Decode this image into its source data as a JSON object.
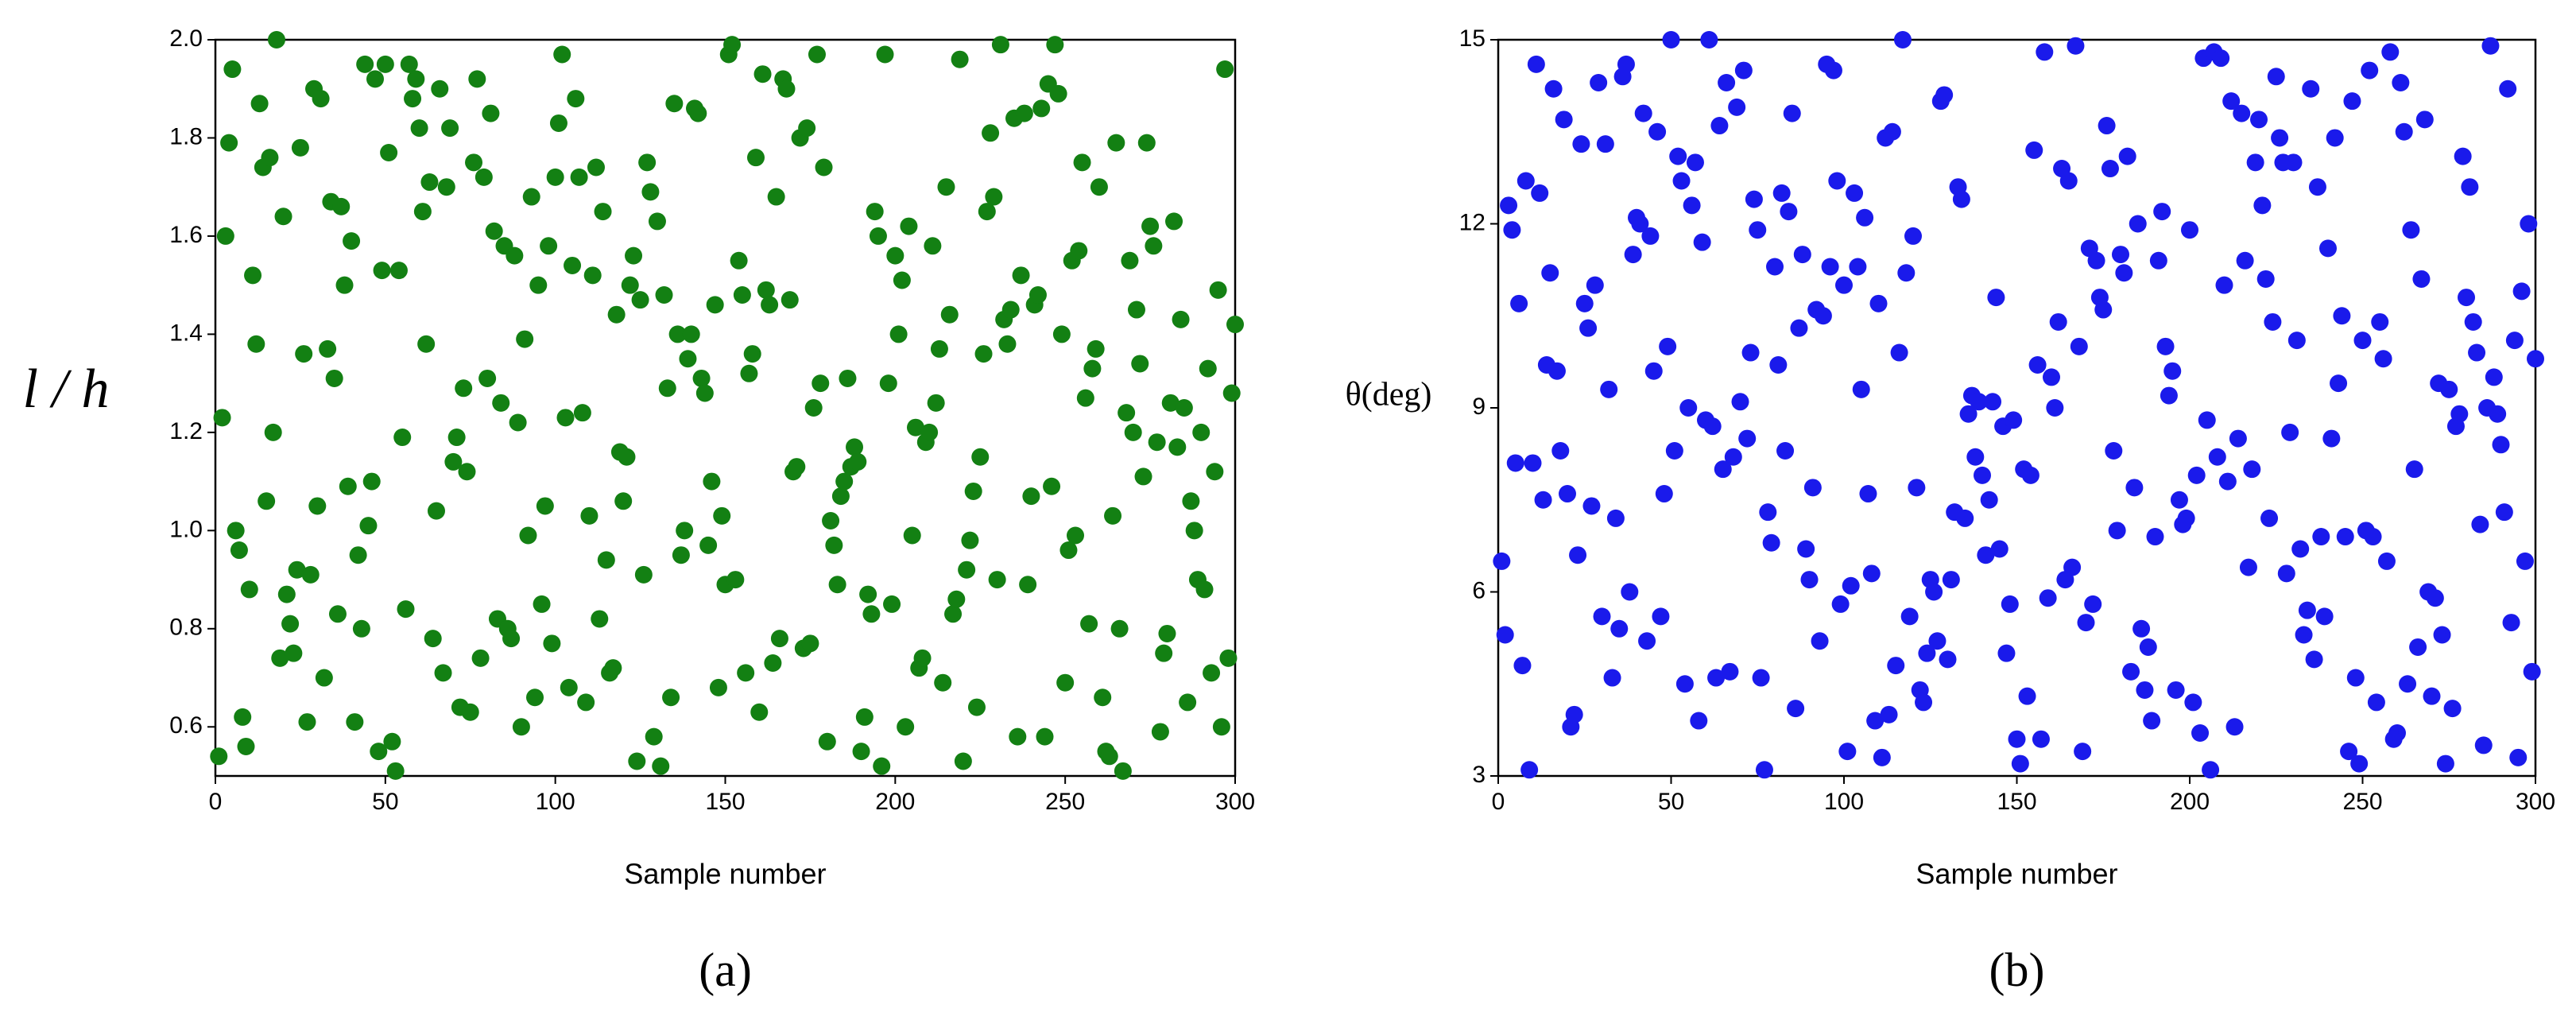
{
  "chart_data": [
    {
      "type": "scatter",
      "panel_label": "(a)",
      "xlabel": "Sample number",
      "ylabel": "l / h",
      "color": "#138013",
      "xlim": [
        0,
        300
      ],
      "xticks": [
        0,
        50,
        100,
        150,
        200,
        250,
        300
      ],
      "ylim": [
        0.5,
        2.0
      ],
      "yticks": [
        0.6,
        0.8,
        {
          "value": 1,
          "label": "1.0"
        },
        1.2,
        1.4,
        1.6,
        1.8,
        {
          "value": 2,
          "label": "2.0"
        }
      ],
      "x": [
        1,
        2,
        3,
        4,
        5,
        6,
        7,
        8,
        9,
        10,
        11,
        12,
        13,
        14,
        15,
        16,
        17,
        18,
        19,
        20,
        21,
        22,
        23,
        24,
        25,
        26,
        27,
        28,
        29,
        30,
        31,
        32,
        33,
        34,
        35,
        36,
        37,
        38,
        39,
        40,
        41,
        42,
        43,
        44,
        45,
        46,
        47,
        48,
        49,
        50,
        51,
        52,
        53,
        54,
        55,
        56,
        57,
        58,
        59,
        60,
        61,
        62,
        63,
        64,
        65,
        66,
        67,
        68,
        69,
        70,
        71,
        72,
        73,
        74,
        75,
        76,
        77,
        78,
        79,
        80,
        81,
        82,
        83,
        84,
        85,
        86,
        87,
        88,
        89,
        90,
        91,
        92,
        93,
        94,
        95,
        96,
        97,
        98,
        99,
        100,
        101,
        102,
        103,
        104,
        105,
        106,
        107,
        108,
        109,
        110,
        111,
        112,
        113,
        114,
        115,
        116,
        117,
        118,
        119,
        120,
        121,
        122,
        123,
        124,
        125,
        126,
        127,
        128,
        129,
        130,
        131,
        132,
        133,
        134,
        135,
        136,
        137,
        138,
        139,
        140,
        141,
        142,
        143,
        144,
        145,
        146,
        147,
        148,
        149,
        150,
        151,
        152,
        153,
        154,
        155,
        156,
        157,
        158,
        159,
        160,
        161,
        162,
        163,
        164,
        165,
        166,
        167,
        168,
        169,
        170,
        171,
        172,
        173,
        174,
        175,
        176,
        177,
        178,
        179,
        180,
        181,
        182,
        183,
        184,
        185,
        186,
        187,
        188,
        189,
        190,
        191,
        192,
        193,
        194,
        195,
        196,
        197,
        198,
        199,
        200,
        201,
        202,
        203,
        204,
        205,
        206,
        207,
        208,
        209,
        210,
        211,
        212,
        213,
        214,
        215,
        216,
        217,
        218,
        219,
        220,
        221,
        222,
        223,
        224,
        225,
        226,
        227,
        228,
        229,
        230,
        231,
        232,
        233,
        234,
        235,
        236,
        237,
        238,
        239,
        240,
        241,
        242,
        243,
        244,
        245,
        246,
        247,
        248,
        249,
        250,
        251,
        252,
        253,
        254,
        255,
        256,
        257,
        258,
        259,
        260,
        261,
        262,
        263,
        264,
        265,
        266,
        267,
        268,
        269,
        270,
        271,
        272,
        273,
        274,
        275,
        276,
        277,
        278,
        279,
        280,
        281,
        282,
        283,
        284,
        285,
        286,
        287,
        288,
        289,
        290,
        291,
        292,
        293,
        294,
        295,
        296,
        297,
        298,
        299,
        300
      ],
      "values": [
        0.54,
        1.23,
        1.6,
        1.79,
        1.94,
        1.0,
        0.96,
        0.62,
        0.56,
        0.88,
        1.52,
        1.38,
        1.87,
        1.74,
        1.06,
        1.76,
        1.2,
        2.0,
        0.74,
        1.64,
        0.87,
        0.81,
        0.75,
        0.92,
        1.78,
        1.36,
        0.61,
        0.91,
        1.9,
        1.05,
        1.88,
        0.7,
        1.37,
        1.67,
        1.31,
        0.83,
        1.66,
        1.5,
        1.09,
        1.59,
        0.61,
        0.95,
        0.8,
        1.95,
        1.01,
        1.1,
        1.92,
        0.55,
        1.53,
        1.95,
        1.77,
        0.57,
        0.51,
        1.53,
        1.19,
        0.84,
        1.95,
        1.88,
        1.92,
        1.82,
        1.65,
        1.38,
        1.71,
        0.78,
        1.04,
        1.9,
        0.71,
        1.7,
        1.82,
        1.14,
        1.19,
        0.64,
        1.29,
        1.12,
        0.63,
        1.75,
        1.92,
        0.74,
        1.72,
        1.31,
        1.85,
        1.61,
        0.82,
        1.26,
        1.58,
        0.8,
        0.78,
        1.56,
        1.22,
        0.6,
        1.39,
        0.99,
        1.68,
        0.66,
        1.5,
        0.85,
        1.05,
        1.58,
        0.77,
        1.72,
        1.83,
        1.97,
        1.23,
        0.68,
        1.54,
        1.88,
        1.72,
        1.24,
        0.65,
        1.03,
        1.52,
        1.74,
        0.82,
        1.65,
        0.94,
        0.71,
        0.72,
        1.44,
        1.16,
        1.06,
        1.15,
        1.5,
        1.56,
        0.53,
        1.47,
        0.91,
        1.75,
        1.69,
        0.58,
        1.63,
        0.52,
        1.48,
        1.29,
        0.66,
        1.87,
        1.4,
        0.95,
        1.0,
        1.35,
        1.4,
        1.86,
        1.85,
        1.31,
        1.28,
        0.97,
        1.1,
        1.46,
        0.68,
        1.03,
        0.89,
        1.97,
        1.99,
        0.9,
        1.55,
        1.48,
        0.71,
        1.32,
        1.36,
        1.76,
        0.63,
        1.93,
        1.49,
        1.46,
        0.73,
        1.68,
        0.78,
        1.92,
        1.9,
        1.47,
        1.12,
        1.13,
        1.8,
        0.76,
        1.82,
        0.77,
        1.25,
        1.97,
        1.3,
        1.74,
        0.57,
        1.02,
        0.97,
        0.89,
        1.07,
        1.1,
        1.31,
        1.13,
        1.17,
        1.14,
        0.55,
        0.62,
        0.87,
        0.83,
        1.65,
        1.6,
        0.52,
        1.97,
        1.3,
        0.85,
        1.56,
        1.4,
        1.51,
        0.6,
        1.62,
        0.99,
        1.21,
        0.72,
        0.74,
        1.18,
        1.2,
        1.58,
        1.26,
        1.37,
        0.69,
        1.7,
        1.44,
        0.83,
        0.86,
        1.96,
        0.53,
        0.92,
        0.98,
        1.08,
        0.64,
        1.15,
        1.36,
        1.65,
        1.81,
        1.68,
        0.9,
        1.99,
        1.43,
        1.38,
        1.45,
        1.84,
        0.58,
        1.52,
        1.85,
        0.89,
        1.07,
        1.46,
        1.48,
        1.86,
        0.58,
        1.91,
        1.09,
        1.99,
        1.89,
        1.4,
        0.69,
        0.96,
        1.55,
        0.99,
        1.57,
        1.75,
        1.27,
        0.81,
        1.33,
        1.37,
        1.7,
        0.66,
        0.55,
        0.54,
        1.03,
        1.79,
        0.8,
        0.51,
        1.24,
        1.55,
        1.2,
        1.45,
        1.34,
        1.11,
        1.79,
        1.62,
        1.58,
        1.18,
        0.59,
        0.75,
        0.79,
        1.26,
        1.63,
        1.17,
        1.43,
        1.25,
        0.65,
        1.06,
        1.0,
        0.9,
        1.2,
        0.88,
        1.33,
        0.71,
        1.12,
        1.49,
        0.6,
        1.94,
        0.74,
        1.28,
        1.42
      ]
    },
    {
      "type": "scatter",
      "panel_label": "(b)",
      "xlabel": "Sample number",
      "ylabel": "θ(deg)",
      "color": "#1a1aeb",
      "xlim": [
        0,
        300
      ],
      "xticks": [
        0,
        50,
        100,
        150,
        200,
        250,
        300
      ],
      "ylim": [
        3,
        15
      ],
      "yticks": [
        3,
        6,
        9,
        12,
        15
      ],
      "x": [
        1,
        2,
        3,
        4,
        5,
        6,
        7,
        8,
        9,
        10,
        11,
        12,
        13,
        14,
        15,
        16,
        17,
        18,
        19,
        20,
        21,
        22,
        23,
        24,
        25,
        26,
        27,
        28,
        29,
        30,
        31,
        32,
        33,
        34,
        35,
        36,
        37,
        38,
        39,
        40,
        41,
        42,
        43,
        44,
        45,
        46,
        47,
        48,
        49,
        50,
        51,
        52,
        53,
        54,
        55,
        56,
        57,
        58,
        59,
        60,
        61,
        62,
        63,
        64,
        65,
        66,
        67,
        68,
        69,
        70,
        71,
        72,
        73,
        74,
        75,
        76,
        77,
        78,
        79,
        80,
        81,
        82,
        83,
        84,
        85,
        86,
        87,
        88,
        89,
        90,
        91,
        92,
        93,
        94,
        95,
        96,
        97,
        98,
        99,
        100,
        101,
        102,
        103,
        104,
        105,
        106,
        107,
        108,
        109,
        110,
        111,
        112,
        113,
        114,
        115,
        116,
        117,
        118,
        119,
        120,
        121,
        122,
        123,
        124,
        125,
        126,
        127,
        128,
        129,
        130,
        131,
        132,
        133,
        134,
        135,
        136,
        137,
        138,
        139,
        140,
        141,
        142,
        143,
        144,
        145,
        146,
        147,
        148,
        149,
        150,
        151,
        152,
        153,
        154,
        155,
        156,
        157,
        158,
        159,
        160,
        161,
        162,
        163,
        164,
        165,
        166,
        167,
        168,
        169,
        170,
        171,
        172,
        173,
        174,
        175,
        176,
        177,
        178,
        179,
        180,
        181,
        182,
        183,
        184,
        185,
        186,
        187,
        188,
        189,
        190,
        191,
        192,
        193,
        194,
        195,
        196,
        197,
        198,
        199,
        200,
        201,
        202,
        203,
        204,
        205,
        206,
        207,
        208,
        209,
        210,
        211,
        212,
        213,
        214,
        215,
        216,
        217,
        218,
        219,
        220,
        221,
        222,
        223,
        224,
        225,
        226,
        227,
        228,
        229,
        230,
        231,
        232,
        233,
        234,
        235,
        236,
        237,
        238,
        239,
        240,
        241,
        242,
        243,
        244,
        245,
        246,
        247,
        248,
        249,
        250,
        251,
        252,
        253,
        254,
        255,
        256,
        257,
        258,
        259,
        260,
        261,
        262,
        263,
        264,
        265,
        266,
        267,
        268,
        269,
        270,
        271,
        272,
        273,
        274,
        275,
        276,
        277,
        278,
        279,
        280,
        281,
        282,
        283,
        284,
        285,
        286,
        287,
        288,
        289,
        290,
        291,
        292,
        293,
        294,
        295,
        296,
        297,
        298,
        299,
        300
      ],
      "values": [
        6.5,
        5.3,
        12.3,
        11.9,
        8.1,
        10.7,
        4.8,
        12.7,
        3.1,
        8.1,
        14.6,
        12.5,
        7.5,
        9.7,
        11.2,
        14.2,
        9.6,
        8.3,
        13.7,
        7.6,
        3.8,
        4.0,
        6.6,
        13.3,
        10.7,
        10.3,
        7.4,
        11.0,
        14.3,
        5.6,
        13.3,
        9.3,
        4.6,
        7.2,
        5.4,
        14.4,
        14.6,
        6.0,
        11.5,
        12.1,
        12.0,
        13.8,
        5.2,
        11.8,
        9.6,
        13.5,
        5.6,
        7.6,
        10.0,
        15.0,
        8.3,
        13.1,
        12.7,
        4.5,
        9.0,
        12.3,
        13.0,
        3.9,
        11.7,
        8.8,
        15.0,
        8.7,
        4.6,
        13.6,
        8.0,
        14.3,
        4.7,
        8.2,
        13.9,
        9.1,
        14.5,
        8.5,
        9.9,
        12.4,
        11.9,
        4.6,
        3.1,
        7.3,
        6.8,
        11.3,
        9.7,
        12.5,
        8.3,
        12.2,
        13.8,
        4.1,
        10.3,
        11.5,
        6.7,
        6.2,
        7.7,
        10.6,
        5.2,
        10.5,
        14.6,
        11.3,
        14.5,
        12.7,
        5.8,
        11.0,
        3.4,
        6.1,
        12.5,
        11.3,
        9.3,
        12.1,
        7.6,
        6.3,
        3.9,
        10.7,
        3.3,
        13.4,
        4.0,
        13.5,
        4.8,
        9.9,
        15.0,
        11.2,
        5.6,
        11.8,
        7.7,
        4.4,
        4.2,
        5.0,
        6.2,
        6.0,
        5.2,
        14.0,
        14.1,
        4.9,
        6.2,
        7.3,
        12.6,
        12.4,
        7.2,
        8.9,
        9.2,
        8.2,
        9.1,
        7.9,
        6.6,
        7.5,
        9.1,
        10.8,
        6.7,
        8.7,
        5.0,
        5.8,
        8.8,
        3.6,
        3.2,
        8.0,
        4.3,
        7.9,
        13.2,
        9.7,
        3.6,
        14.8,
        5.9,
        9.5,
        9.0,
        10.4,
        12.9,
        6.2,
        12.7,
        6.4,
        14.9,
        10.0,
        3.4,
        5.5,
        11.6,
        5.8,
        11.4,
        10.8,
        10.6,
        13.6,
        12.9,
        8.3,
        7.0,
        11.5,
        11.2,
        13.1,
        4.7,
        7.7,
        12.0,
        5.4,
        4.4,
        5.1,
        3.9,
        6.9,
        11.4,
        12.2,
        10.0,
        9.2,
        9.6,
        4.4,
        7.5,
        7.1,
        7.2,
        11.9,
        4.2,
        7.9,
        3.7,
        14.7,
        8.8,
        3.1,
        14.8,
        8.2,
        14.7,
        11.0,
        7.8,
        14.0,
        3.8,
        8.5,
        13.8,
        11.4,
        6.4,
        8.0,
        13.0,
        13.7,
        12.3,
        11.1,
        7.2,
        10.4,
        14.4,
        13.4,
        13.0,
        6.3,
        8.6,
        13.0,
        10.1,
        6.7,
        5.3,
        5.7,
        14.2,
        4.9,
        12.6,
        6.9,
        5.6,
        11.6,
        8.5,
        13.4,
        9.4,
        10.5,
        6.9,
        3.4,
        14.0,
        4.6,
        3.2,
        10.1,
        7.0,
        14.5,
        6.9,
        4.2,
        10.4,
        9.8,
        6.5,
        14.8,
        3.6,
        3.7,
        14.3,
        13.5,
        4.5,
        11.9,
        8.0,
        5.1,
        11.1,
        13.7,
        6.0,
        4.3,
        5.9,
        9.4,
        5.3,
        3.2,
        9.3,
        4.1,
        8.7,
        8.9,
        13.1,
        10.8,
        12.6,
        10.4,
        9.9,
        7.1,
        3.5,
        9.0,
        14.9,
        9.5,
        8.9,
        8.4,
        7.3,
        14.2,
        5.5,
        10.1,
        3.3,
        10.9,
        6.5,
        12.0,
        4.7,
        9.8
      ]
    }
  ]
}
